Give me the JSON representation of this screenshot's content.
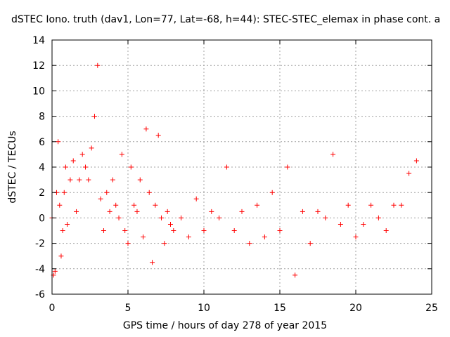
{
  "chart_data": {
    "type": "scatter",
    "title": "dSTEC Iono. truth (dav1, Lon=77, Lat=-68, h=44): STEC-STEC_elemax in phase cont. a",
    "xlabel": "GPS time / hours of day 278 of year 2015",
    "ylabel": "dSTEC  / TECUs",
    "xlim": [
      0,
      25
    ],
    "ylim": [
      -6,
      14
    ],
    "x_ticks": [
      0,
      5,
      10,
      15,
      20,
      25
    ],
    "y_ticks": [
      -6,
      -4,
      -2,
      0,
      2,
      4,
      6,
      8,
      10,
      12,
      14
    ],
    "grid": true,
    "marker": "+",
    "color": "#ff0000",
    "series": [
      {
        "x": [
          0.0,
          0.1,
          0.2,
          0.3,
          0.4,
          0.5,
          0.6,
          0.7,
          0.8,
          0.9,
          1.0,
          1.2,
          1.4,
          1.6,
          1.8,
          2.0,
          2.2,
          2.4,
          2.6,
          2.8,
          3.0,
          3.2,
          3.4,
          3.6,
          3.8,
          4.0,
          4.2,
          4.4,
          4.6,
          4.8,
          5.0,
          5.2,
          5.4,
          5.6,
          5.8,
          6.0,
          6.2,
          6.4,
          6.6,
          6.8,
          7.0,
          7.2,
          7.4,
          7.6,
          7.8,
          8.0,
          8.5,
          9.0,
          9.5,
          10.0,
          10.5,
          11.0,
          11.5,
          12.0,
          12.5,
          13.0,
          13.5,
          14.0,
          14.5,
          15.0,
          15.5,
          16.0,
          16.5,
          17.0,
          17.5,
          18.0,
          18.5,
          19.0,
          19.5,
          20.0,
          20.5,
          21.0,
          21.5,
          22.0,
          22.5,
          23.0,
          23.5,
          24.0
        ],
        "y": [
          0.0,
          -4.5,
          -4.2,
          2.0,
          6.0,
          1.0,
          -3.0,
          -1.0,
          2.0,
          4.0,
          -0.5,
          3.0,
          4.5,
          0.5,
          3.0,
          5.0,
          4.0,
          3.0,
          5.5,
          8.0,
          12.0,
          1.5,
          -1.0,
          2.0,
          0.5,
          3.0,
          1.0,
          0.0,
          5.0,
          -1.0,
          -2.0,
          4.0,
          1.0,
          0.5,
          3.0,
          -1.5,
          7.0,
          2.0,
          -3.5,
          1.0,
          6.5,
          0.0,
          -2.0,
          0.5,
          -0.5,
          -1.0,
          0.0,
          -1.5,
          1.5,
          -1.0,
          0.5,
          0.0,
          4.0,
          -1.0,
          0.5,
          -2.0,
          1.0,
          -1.5,
          2.0,
          -1.0,
          4.0,
          -4.5,
          0.5,
          -2.0,
          0.5,
          0.0,
          5.0,
          -0.5,
          1.0,
          -1.5,
          -0.5,
          1.0,
          0.0,
          -1.0,
          1.0,
          1.0,
          3.5,
          4.5
        ]
      }
    ]
  }
}
